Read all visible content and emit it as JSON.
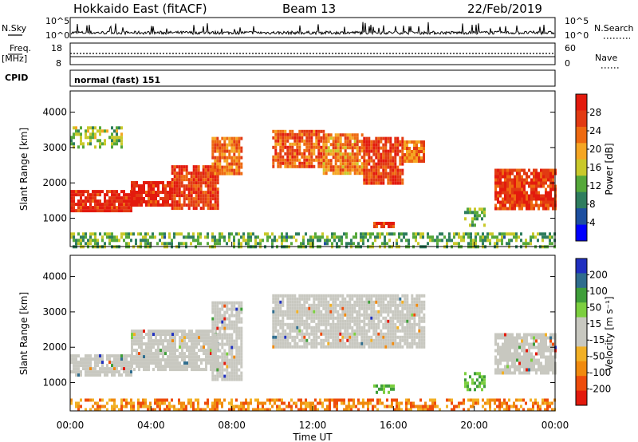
{
  "header": {
    "station": "Hokkaido East (fitACF)",
    "beam": "Beam 13",
    "date": "22/Feb/2019"
  },
  "panels": {
    "nsky": {
      "left_label": "N.Sky",
      "left_top_tick": "10^5",
      "left_bottom_tick": "10^0",
      "right_label": "N.Search",
      "right_top_tick": "10^5",
      "right_bottom_tick": "10^0"
    },
    "freq": {
      "left_label_line1": "Freq.",
      "left_label_line2": "[MHz]",
      "left_top_tick": "18",
      "left_bottom_tick": "8",
      "right_label": "Nave",
      "right_top_tick": "60",
      "right_bottom_tick": "0"
    },
    "cpid": {
      "label": "CPID",
      "value": "normal (fast) 151"
    }
  },
  "colors": {
    "power_scale": [
      "#0000ff",
      "#1d4fa0",
      "#2e7d5e",
      "#55a83a",
      "#c9c92b",
      "#f5a623",
      "#ee6a11",
      "#e23a12",
      "#e31a0d"
    ],
    "velocity_scale": [
      "#e31a0d",
      "#ee4c0c",
      "#f08a0f",
      "#f2b025",
      "#c8c8c0",
      "#c8c8c0",
      "#7ccf3f",
      "#3f9e3a",
      "#2f6d8e",
      "#2030c0"
    ],
    "ground_scatter": "#c8c8c0"
  },
  "chart_data": [
    {
      "type": "heatmap",
      "name": "Power",
      "ylabel": "Slant Range [km]",
      "yticks": [
        "1000",
        "2000",
        "3000",
        "4000"
      ],
      "ylim": [
        200,
        4600
      ],
      "xlim": [
        0,
        24
      ],
      "colorbar_label": "Power [dB]",
      "colorbar_ticks": [
        "4",
        "8",
        "12",
        "16",
        "20",
        "24",
        "28"
      ],
      "colorbar_range": [
        0,
        32
      ],
      "regions": [
        {
          "t": [
            0.0,
            3.0
          ],
          "r": [
            1250,
            1800
          ],
          "level": 29
        },
        {
          "t": [
            3.0,
            5.0
          ],
          "r": [
            1350,
            2050
          ],
          "level": 29
        },
        {
          "t": [
            5.0,
            7.3
          ],
          "r": [
            1300,
            2500
          ],
          "level": 27
        },
        {
          "t": [
            7.0,
            8.5
          ],
          "r": [
            2300,
            3300
          ],
          "level": 23
        },
        {
          "t": [
            10.0,
            12.5
          ],
          "r": [
            2500,
            3500
          ],
          "level": 25
        },
        {
          "t": [
            12.5,
            14.5
          ],
          "r": [
            2300,
            3400
          ],
          "level": 22
        },
        {
          "t": [
            14.5,
            16.5
          ],
          "r": [
            2000,
            3300
          ],
          "level": 27
        },
        {
          "t": [
            16.5,
            17.5
          ],
          "r": [
            2600,
            3200
          ],
          "level": 23
        },
        {
          "t": [
            21.0,
            24.0
          ],
          "r": [
            1300,
            2400
          ],
          "level": 27
        },
        {
          "t": [
            0.0,
            2.5
          ],
          "r": [
            3000,
            3600
          ],
          "level": 14
        },
        {
          "t": [
            19.5,
            20.5
          ],
          "r": [
            800,
            1300
          ],
          "level": 13
        },
        {
          "t": [
            15.0,
            16.0
          ],
          "r": [
            750,
            900
          ],
          "level": 28
        },
        {
          "t": [
            0.0,
            24.0
          ],
          "r": [
            200,
            600
          ],
          "level": 12
        }
      ]
    },
    {
      "type": "heatmap",
      "name": "Velocity",
      "ylabel": "Slant Range [km]",
      "yticks": [
        "1000",
        "2000",
        "3000",
        "4000"
      ],
      "ylim": [
        200,
        4600
      ],
      "xlim": [
        0,
        24
      ],
      "xlabel": "Time UT",
      "xticks": [
        "00:00",
        "04:00",
        "08:00",
        "12:00",
        "16:00",
        "20:00",
        "00:00"
      ],
      "colorbar_label": "Velocity [m s⁻¹]",
      "colorbar_ticks": [
        "-200",
        "-100",
        "-50",
        "-15",
        "15",
        "50",
        "100",
        "200"
      ],
      "regions": [
        {
          "t": [
            0.0,
            3.0
          ],
          "r": [
            1250,
            1800
          ],
          "class": "ground"
        },
        {
          "t": [
            3.0,
            7.3
          ],
          "r": [
            1350,
            2500
          ],
          "class": "ground"
        },
        {
          "t": [
            7.0,
            8.5
          ],
          "r": [
            1100,
            3300
          ],
          "class": "ground"
        },
        {
          "t": [
            10.0,
            17.5
          ],
          "r": [
            2000,
            3500
          ],
          "class": "ground"
        },
        {
          "t": [
            21.0,
            24.0
          ],
          "r": [
            1300,
            2400
          ],
          "class": "ground"
        },
        {
          "t": [
            19.5,
            20.5
          ],
          "r": [
            800,
            1300
          ],
          "class": "positive"
        },
        {
          "t": [
            15.0,
            16.0
          ],
          "r": [
            700,
            950
          ],
          "class": "positive"
        },
        {
          "t": [
            0.0,
            24.0
          ],
          "r": [
            200,
            550
          ],
          "class": "negative"
        }
      ]
    }
  ]
}
